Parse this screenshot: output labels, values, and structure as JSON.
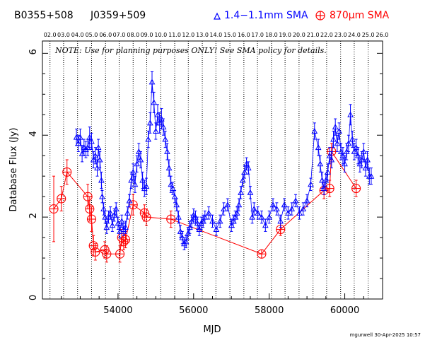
{
  "chart_data": {
    "type": "scatter",
    "source_names": [
      "B0355+508",
      "J0359+509"
    ],
    "xlabel": "MJD",
    "ylabel": "Database Flux (Jy)",
    "note": "NOTE: Use for planning purposes ONLY!  See SMA policy for details.",
    "credit": "mgurwell 30-Apr-2025 10:57",
    "xlim": [
      52000,
      61000
    ],
    "ylim": [
      0,
      6.3
    ],
    "x_ticks": [
      54000,
      56000,
      58000,
      60000
    ],
    "y_ticks": [
      0,
      2,
      4,
      6
    ],
    "top_ticks": [
      {
        "label": "02.0",
        "x": 52200
      },
      {
        "label": "03.0",
        "x": 52560
      },
      {
        "label": "04.0",
        "x": 52930
      },
      {
        "label": "05.0",
        "x": 53300
      },
      {
        "label": "06.0",
        "x": 53670
      },
      {
        "label": "07.0",
        "x": 54030
      },
      {
        "label": "08.0",
        "x": 54400
      },
      {
        "label": "09.0",
        "x": 54760
      },
      {
        "label": "10.0",
        "x": 55130
      },
      {
        "label": "11.0",
        "x": 55500
      },
      {
        "label": "12.0",
        "x": 55860
      },
      {
        "label": "13.0",
        "x": 56230
      },
      {
        "label": "14.0",
        "x": 56590
      },
      {
        "label": "15.0",
        "x": 56960
      },
      {
        "label": "16.0",
        "x": 57330
      },
      {
        "label": "17.0",
        "x": 57690
      },
      {
        "label": "18.0",
        "x": 58060
      },
      {
        "label": "19.0",
        "x": 58420
      },
      {
        "label": "20.0",
        "x": 58790
      },
      {
        "label": "21.0",
        "x": 59160
      },
      {
        "label": "22.0",
        "x": 59520
      },
      {
        "label": "23.0",
        "x": 59890
      },
      {
        "label": "24.0",
        "x": 60250
      },
      {
        "label": "25.0",
        "x": 60620
      },
      {
        "label": "26.0",
        "x": 60990
      }
    ],
    "series": [
      {
        "name": "1.4−1.1mm SMA",
        "color": "#0000ff",
        "marker": "triangle",
        "points": [
          [
            52900,
            3.95,
            0.2
          ],
          [
            52950,
            3.8,
            0.2
          ],
          [
            53000,
            3.95,
            0.2
          ],
          [
            53050,
            3.55,
            0.2
          ],
          [
            53100,
            3.7,
            0.2
          ],
          [
            53150,
            3.65,
            0.2
          ],
          [
            53200,
            3.7,
            0.2
          ],
          [
            53250,
            3.95,
            0.25
          ],
          [
            53300,
            3.85,
            0.2
          ],
          [
            53350,
            3.4,
            0.2
          ],
          [
            53400,
            3.5,
            0.2
          ],
          [
            53450,
            3.2,
            0.2
          ],
          [
            53480,
            3.7,
            0.2
          ],
          [
            53520,
            3.4,
            0.2
          ],
          [
            53560,
            2.9,
            0.2
          ],
          [
            53580,
            2.5,
            0.15
          ],
          [
            53620,
            2.2,
            0.15
          ],
          [
            53660,
            2.0,
            0.15
          ],
          [
            53700,
            1.75,
            0.15
          ],
          [
            53750,
            2.0,
            0.15
          ],
          [
            53800,
            2.1,
            0.15
          ],
          [
            53850,
            1.8,
            0.15
          ],
          [
            53900,
            2.05,
            0.15
          ],
          [
            53950,
            2.2,
            0.15
          ],
          [
            54000,
            1.85,
            0.15
          ],
          [
            54050,
            1.65,
            0.15
          ],
          [
            54100,
            1.9,
            0.15
          ],
          [
            54150,
            1.7,
            0.15
          ],
          [
            54200,
            1.75,
            0.15
          ],
          [
            54250,
            2.1,
            0.15
          ],
          [
            54300,
            2.4,
            0.15
          ],
          [
            54350,
            2.9,
            0.2
          ],
          [
            54400,
            3.1,
            0.2
          ],
          [
            54450,
            2.8,
            0.2
          ],
          [
            54500,
            3.3,
            0.2
          ],
          [
            54550,
            3.6,
            0.2
          ],
          [
            54600,
            3.4,
            0.2
          ],
          [
            54650,
            2.9,
            0.2
          ],
          [
            54700,
            2.7,
            0.2
          ],
          [
            54750,
            2.75,
            0.2
          ],
          [
            54800,
            3.9,
            0.2
          ],
          [
            54850,
            4.3,
            0.25
          ],
          [
            54900,
            5.3,
            0.25
          ],
          [
            54950,
            4.8,
            0.25
          ],
          [
            55000,
            4.1,
            0.2
          ],
          [
            55050,
            4.5,
            0.25
          ],
          [
            55100,
            4.3,
            0.25
          ],
          [
            55150,
            4.4,
            0.25
          ],
          [
            55200,
            4.2,
            0.2
          ],
          [
            55250,
            3.9,
            0.2
          ],
          [
            55300,
            3.6,
            0.2
          ],
          [
            55350,
            3.2,
            0.2
          ],
          [
            55400,
            2.8,
            0.2
          ],
          [
            55450,
            2.7,
            0.15
          ],
          [
            55500,
            2.5,
            0.15
          ],
          [
            55550,
            2.3,
            0.15
          ],
          [
            55600,
            2.0,
            0.15
          ],
          [
            55650,
            1.65,
            0.15
          ],
          [
            55700,
            1.5,
            0.15
          ],
          [
            55750,
            1.35,
            0.15
          ],
          [
            55800,
            1.4,
            0.15
          ],
          [
            55850,
            1.6,
            0.15
          ],
          [
            55900,
            1.75,
            0.15
          ],
          [
            55950,
            1.9,
            0.15
          ],
          [
            56000,
            2.05,
            0.15
          ],
          [
            56050,
            2.0,
            0.15
          ],
          [
            56100,
            1.85,
            0.15
          ],
          [
            56150,
            1.7,
            0.15
          ],
          [
            56200,
            1.85,
            0.15
          ],
          [
            56250,
            1.9,
            0.15
          ],
          [
            56300,
            2.0,
            0.15
          ],
          [
            56400,
            2.1,
            0.15
          ],
          [
            56500,
            1.9,
            0.15
          ],
          [
            56600,
            1.7,
            0.15
          ],
          [
            56700,
            1.9,
            0.15
          ],
          [
            56800,
            2.2,
            0.15
          ],
          [
            56900,
            2.3,
            0.15
          ],
          [
            57000,
            1.8,
            0.15
          ],
          [
            57050,
            1.9,
            0.15
          ],
          [
            57100,
            2.0,
            0.15
          ],
          [
            57150,
            2.1,
            0.15
          ],
          [
            57200,
            2.3,
            0.15
          ],
          [
            57250,
            2.6,
            0.15
          ],
          [
            57300,
            2.9,
            0.15
          ],
          [
            57350,
            3.1,
            0.15
          ],
          [
            57400,
            3.3,
            0.15
          ],
          [
            57450,
            3.2,
            0.15
          ],
          [
            57500,
            2.6,
            0.15
          ],
          [
            57550,
            2.0,
            0.15
          ],
          [
            57600,
            2.2,
            0.15
          ],
          [
            57700,
            2.1,
            0.15
          ],
          [
            57800,
            2.0,
            0.15
          ],
          [
            57900,
            1.8,
            0.15
          ],
          [
            58000,
            2.0,
            0.15
          ],
          [
            58100,
            2.3,
            0.15
          ],
          [
            58200,
            2.2,
            0.15
          ],
          [
            58300,
            1.9,
            0.15
          ],
          [
            58400,
            2.3,
            0.15
          ],
          [
            58500,
            2.1,
            0.15
          ],
          [
            58600,
            2.2,
            0.15
          ],
          [
            58700,
            2.4,
            0.15
          ],
          [
            58800,
            2.1,
            0.15
          ],
          [
            58900,
            2.2,
            0.15
          ],
          [
            59000,
            2.4,
            0.15
          ],
          [
            59100,
            2.8,
            0.15
          ],
          [
            59200,
            4.1,
            0.2
          ],
          [
            59300,
            3.7,
            0.2
          ],
          [
            59350,
            3.3,
            0.2
          ],
          [
            59400,
            2.9,
            0.2
          ],
          [
            59450,
            2.7,
            0.15
          ],
          [
            59500,
            2.9,
            0.15
          ],
          [
            59550,
            3.1,
            0.2
          ],
          [
            59600,
            3.5,
            0.2
          ],
          [
            59650,
            3.4,
            0.2
          ],
          [
            59700,
            3.9,
            0.2
          ],
          [
            59750,
            4.2,
            0.2
          ],
          [
            59800,
            3.8,
            0.2
          ],
          [
            59850,
            4.1,
            0.2
          ],
          [
            59900,
            3.6,
            0.2
          ],
          [
            59950,
            3.5,
            0.2
          ],
          [
            60000,
            3.3,
            0.2
          ],
          [
            60050,
            3.6,
            0.2
          ],
          [
            60100,
            3.8,
            0.2
          ],
          [
            60150,
            4.5,
            0.25
          ],
          [
            60200,
            3.9,
            0.2
          ],
          [
            60250,
            3.6,
            0.2
          ],
          [
            60300,
            3.7,
            0.2
          ],
          [
            60350,
            3.5,
            0.2
          ],
          [
            60400,
            3.3,
            0.2
          ],
          [
            60450,
            3.4,
            0.2
          ],
          [
            60500,
            3.6,
            0.2
          ],
          [
            60550,
            3.2,
            0.2
          ],
          [
            60600,
            3.4,
            0.2
          ],
          [
            60650,
            3.0,
            0.2
          ],
          [
            60700,
            3.0,
            0.2
          ]
        ]
      },
      {
        "name": "870μm SMA",
        "color": "#ff0000",
        "marker": "circle-plus",
        "connect": true,
        "points": [
          [
            52300,
            2.2,
            0.8
          ],
          [
            52500,
            2.45,
            0.3
          ],
          [
            52650,
            3.1,
            0.3
          ],
          [
            53200,
            2.5,
            0.3
          ],
          [
            53250,
            2.2,
            0.3
          ],
          [
            53300,
            1.95,
            0.3
          ],
          [
            53350,
            1.3,
            0.25
          ],
          [
            53400,
            1.15,
            0.2
          ],
          [
            53650,
            1.2,
            0.2
          ],
          [
            53700,
            1.1,
            0.2
          ],
          [
            54050,
            1.1,
            0.2
          ],
          [
            54100,
            1.5,
            0.2
          ],
          [
            54150,
            1.4,
            0.2
          ],
          [
            54200,
            1.45,
            0.2
          ],
          [
            54400,
            2.3,
            0.25
          ],
          [
            54700,
            2.1,
            0.2
          ],
          [
            54750,
            2.0,
            0.2
          ],
          [
            55400,
            1.95,
            0.2
          ],
          [
            57800,
            1.1,
            0.1
          ],
          [
            58300,
            1.7,
            0.15
          ],
          [
            59450,
            2.65,
            0.2
          ],
          [
            59600,
            2.7,
            0.2
          ],
          [
            59650,
            3.6,
            0.2
          ],
          [
            60300,
            2.7,
            0.2
          ]
        ]
      }
    ]
  }
}
